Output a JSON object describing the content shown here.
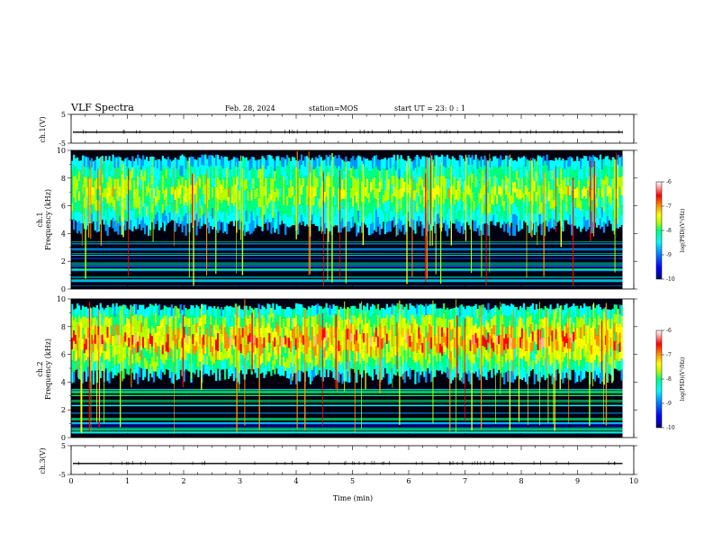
{
  "header": {
    "title": "VLF Spectra",
    "date": "Feb. 28, 2024",
    "station": "station=MOS",
    "start": "start UT =  23: 0  : 1"
  },
  "chart_data": [
    {
      "type": "line",
      "panel": "ch1-waveform",
      "ylabel": "ch.1(V)",
      "ylim": [
        -5,
        5
      ],
      "yticks": [
        "5",
        "-5"
      ],
      "xlim": [
        0,
        10
      ],
      "series": [
        {
          "values": [
            -1.2,
            -1.2
          ]
        }
      ]
    },
    {
      "type": "heatmap",
      "panel": "ch1-spectrogram",
      "ylabel": "ch.1",
      "ylabel2": "Frequency (kHz)",
      "ylim": [
        0,
        10
      ],
      "yticks": [
        "0",
        "2",
        "4",
        "6",
        "8",
        "10"
      ],
      "xlim": [
        0,
        10
      ],
      "data_end_min": 9.8,
      "colorbar": {
        "label": "log(PSD)(V²/Hz)",
        "range": [
          -10,
          -6
        ],
        "ticks": [
          "-6",
          "-7",
          "-8",
          "-9",
          "-10"
        ]
      }
    },
    {
      "type": "heatmap",
      "panel": "ch2-spectrogram",
      "ylabel": "ch.2",
      "ylabel2": "Frequency (kHz)",
      "ylim": [
        0,
        10
      ],
      "yticks": [
        "0",
        "2",
        "4",
        "6",
        "8",
        "10"
      ],
      "xlim": [
        0,
        10
      ],
      "data_end_min": 9.8,
      "colorbar": {
        "label": "log(PSD)(V²/Hz)",
        "range": [
          -10,
          -6
        ],
        "ticks": [
          "-6",
          "-7",
          "-8",
          "-9",
          "-10"
        ]
      }
    },
    {
      "type": "line",
      "panel": "ch3-waveform",
      "ylabel": "ch.3(V)",
      "ylim": [
        -5,
        5
      ],
      "yticks": [
        "5",
        "-5"
      ],
      "xlim": [
        0,
        10
      ],
      "xlabel": "Time (min)",
      "xticks": [
        "0",
        "1",
        "2",
        "3",
        "4",
        "5",
        "6",
        "7",
        "8",
        "9",
        "10"
      ],
      "series": [
        {
          "values": [
            -1.2,
            -1.2
          ]
        }
      ]
    }
  ],
  "colors": {
    "scale": [
      "#00007a",
      "#0000ff",
      "#0096ff",
      "#00ffff",
      "#00ff80",
      "#b4ff00",
      "#ffff00",
      "#ff8c00",
      "#ff0000",
      "#ffb0b0",
      "#ffffff"
    ],
    "background": "#000010",
    "line": "#000000"
  }
}
